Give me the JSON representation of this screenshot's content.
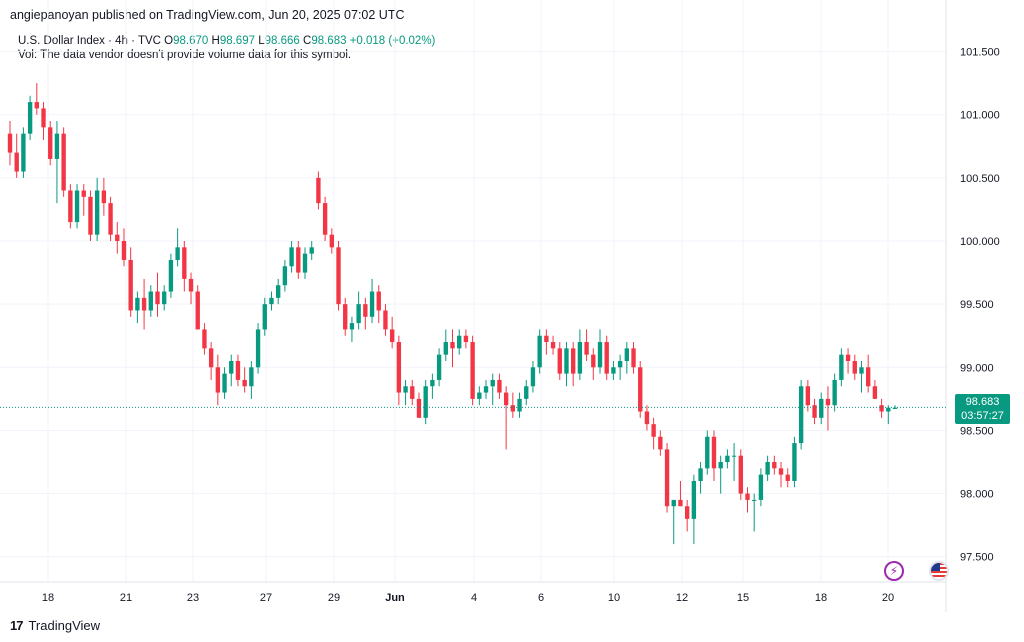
{
  "header": {
    "published": "angiepanoyan published on TradingView.com, Jun 20, 2025 07:02 UTC"
  },
  "legend": {
    "symbol": "U.S. Dollar Index · 4h · TVC",
    "open_label": "O",
    "open": "98.670",
    "high_label": "H",
    "high": "98.697",
    "low_label": "L",
    "low": "98.666",
    "close_label": "C",
    "close": "98.683",
    "change": "+0.018 (+0.02%)",
    "vol_note": "Vol: The data vendor doesn't provide volume data for this symbol."
  },
  "last_price": {
    "value": "98.683",
    "countdown": "03:57:27"
  },
  "colors": {
    "up": "#089981",
    "down": "#f23645",
    "grid": "#f0f3fa"
  },
  "footer": {
    "brand": "TradingView"
  },
  "chart_data": {
    "type": "candlestick",
    "title": "U.S. Dollar Index · 4h · TVC",
    "ylim": [
      97.3,
      101.75
    ],
    "y_ticks": [
      "101.500",
      "101.000",
      "100.500",
      "100.000",
      "99.500",
      "99.000",
      "98.500",
      "98.000",
      "97.500"
    ],
    "x_ticks": [
      "18",
      "21",
      "23",
      "27",
      "29",
      "Jun",
      "4",
      "6",
      "10",
      "12",
      "15",
      "18",
      "20"
    ],
    "candles": [
      [
        100.85,
        100.95,
        100.6,
        100.7
      ],
      [
        100.7,
        100.85,
        100.5,
        100.55
      ],
      [
        100.55,
        100.9,
        100.5,
        100.85
      ],
      [
        100.85,
        101.15,
        100.8,
        101.1
      ],
      [
        101.1,
        101.25,
        101.0,
        101.05
      ],
      [
        101.05,
        101.1,
        100.8,
        100.9
      ],
      [
        100.9,
        100.95,
        100.6,
        100.65
      ],
      [
        100.65,
        100.95,
        100.3,
        100.85
      ],
      [
        100.85,
        100.9,
        100.35,
        100.4
      ],
      [
        100.4,
        100.45,
        100.1,
        100.15
      ],
      [
        100.15,
        100.45,
        100.1,
        100.4
      ],
      [
        100.4,
        100.45,
        100.2,
        100.35
      ],
      [
        100.35,
        100.4,
        100.0,
        100.05
      ],
      [
        100.05,
        100.5,
        100.0,
        100.4
      ],
      [
        100.4,
        100.5,
        100.2,
        100.3
      ],
      [
        100.3,
        100.35,
        100.0,
        100.05
      ],
      [
        100.05,
        100.15,
        99.9,
        100.0
      ],
      [
        100.0,
        100.1,
        99.8,
        99.85
      ],
      [
        99.85,
        99.95,
        99.4,
        99.45
      ],
      [
        99.45,
        99.6,
        99.35,
        99.55
      ],
      [
        99.55,
        99.7,
        99.3,
        99.45
      ],
      [
        99.45,
        99.65,
        99.4,
        99.6
      ],
      [
        99.6,
        99.75,
        99.4,
        99.5
      ],
      [
        99.5,
        99.65,
        99.45,
        99.6
      ],
      [
        99.6,
        99.9,
        99.55,
        99.85
      ],
      [
        99.85,
        100.1,
        99.8,
        99.95
      ],
      [
        99.95,
        100.0,
        99.6,
        99.7
      ],
      [
        99.7,
        99.75,
        99.5,
        99.6
      ],
      [
        99.6,
        99.65,
        99.3,
        99.3
      ],
      [
        99.3,
        99.35,
        99.1,
        99.15
      ],
      [
        99.15,
        99.2,
        98.9,
        99.0
      ],
      [
        99.0,
        99.1,
        98.7,
        98.8
      ],
      [
        98.8,
        99.0,
        98.75,
        98.95
      ],
      [
        98.95,
        99.1,
        98.85,
        99.05
      ],
      [
        99.05,
        99.1,
        98.85,
        98.9
      ],
      [
        98.9,
        99.0,
        98.8,
        98.85
      ],
      [
        98.85,
        99.05,
        98.75,
        99.0
      ],
      [
        99.0,
        99.35,
        98.95,
        99.3
      ],
      [
        99.3,
        99.55,
        99.25,
        99.5
      ],
      [
        99.5,
        99.6,
        99.45,
        99.55
      ],
      [
        99.55,
        99.7,
        99.5,
        99.65
      ],
      [
        99.65,
        99.85,
        99.6,
        99.8
      ],
      [
        99.8,
        100.0,
        99.75,
        99.95
      ],
      [
        99.95,
        100.0,
        99.7,
        99.75
      ],
      [
        99.75,
        99.95,
        99.7,
        99.9
      ],
      [
        99.9,
        100.0,
        99.85,
        99.95
      ],
      [
        100.5,
        100.55,
        100.25,
        100.3
      ],
      [
        100.3,
        100.35,
        100.0,
        100.05
      ],
      [
        100.05,
        100.1,
        99.9,
        99.95
      ],
      [
        99.95,
        100.0,
        99.45,
        99.5
      ],
      [
        99.5,
        99.55,
        99.25,
        99.3
      ],
      [
        99.3,
        99.4,
        99.2,
        99.35
      ],
      [
        99.35,
        99.6,
        99.3,
        99.5
      ],
      [
        99.5,
        99.55,
        99.3,
        99.4
      ],
      [
        99.4,
        99.7,
        99.35,
        99.6
      ],
      [
        99.6,
        99.65,
        99.35,
        99.45
      ],
      [
        99.45,
        99.5,
        99.25,
        99.3
      ],
      [
        99.3,
        99.4,
        99.15,
        99.2
      ],
      [
        99.2,
        99.25,
        98.7,
        98.8
      ],
      [
        98.8,
        98.9,
        98.7,
        98.85
      ],
      [
        98.85,
        98.9,
        98.7,
        98.75
      ],
      [
        98.75,
        98.8,
        98.6,
        98.6
      ],
      [
        98.6,
        98.9,
        98.55,
        98.85
      ],
      [
        98.85,
        98.95,
        98.75,
        98.9
      ],
      [
        98.9,
        99.15,
        98.85,
        99.1
      ],
      [
        99.1,
        99.3,
        99.05,
        99.2
      ],
      [
        99.2,
        99.3,
        99.0,
        99.15
      ],
      [
        99.15,
        99.3,
        99.1,
        99.25
      ],
      [
        99.25,
        99.3,
        99.15,
        99.2
      ],
      [
        99.2,
        99.25,
        98.7,
        98.75
      ],
      [
        98.75,
        98.85,
        98.7,
        98.8
      ],
      [
        98.8,
        98.9,
        98.75,
        98.85
      ],
      [
        98.85,
        98.95,
        98.7,
        98.9
      ],
      [
        98.9,
        98.95,
        98.75,
        98.8
      ],
      [
        98.8,
        98.85,
        98.35,
        98.7
      ],
      [
        98.7,
        98.8,
        98.6,
        98.65
      ],
      [
        98.65,
        98.8,
        98.6,
        98.75
      ],
      [
        98.75,
        98.9,
        98.7,
        98.85
      ],
      [
        98.85,
        99.05,
        98.8,
        99.0
      ],
      [
        99.0,
        99.3,
        98.95,
        99.25
      ],
      [
        99.25,
        99.3,
        99.1,
        99.2
      ],
      [
        99.2,
        99.25,
        99.1,
        99.15
      ],
      [
        99.15,
        99.2,
        98.9,
        98.95
      ],
      [
        98.95,
        99.2,
        98.85,
        99.15
      ],
      [
        99.15,
        99.2,
        98.85,
        98.95
      ],
      [
        98.95,
        99.3,
        98.9,
        99.2
      ],
      [
        99.2,
        99.3,
        99.05,
        99.1
      ],
      [
        99.1,
        99.15,
        98.9,
        99.0
      ],
      [
        99.0,
        99.3,
        98.95,
        99.2
      ],
      [
        99.2,
        99.25,
        98.9,
        98.95
      ],
      [
        98.95,
        99.05,
        98.9,
        99.0
      ],
      [
        99.0,
        99.1,
        98.9,
        99.05
      ],
      [
        99.05,
        99.2,
        98.95,
        99.15
      ],
      [
        99.15,
        99.2,
        98.95,
        99.0
      ],
      [
        99.0,
        99.05,
        98.6,
        98.65
      ],
      [
        98.65,
        98.7,
        98.5,
        98.55
      ],
      [
        98.55,
        98.6,
        98.35,
        98.45
      ],
      [
        98.45,
        98.5,
        98.3,
        98.35
      ],
      [
        98.35,
        98.4,
        97.85,
        97.9
      ],
      [
        97.9,
        97.95,
        97.6,
        97.95
      ],
      [
        97.95,
        98.1,
        97.9,
        97.9
      ],
      [
        97.9,
        97.95,
        97.7,
        97.8
      ],
      [
        97.8,
        98.15,
        97.6,
        98.1
      ],
      [
        98.1,
        98.25,
        98.0,
        98.2
      ],
      [
        98.2,
        98.5,
        98.15,
        98.45
      ],
      [
        98.45,
        98.5,
        98.1,
        98.2
      ],
      [
        98.2,
        98.3,
        98.0,
        98.25
      ],
      [
        98.25,
        98.35,
        98.2,
        98.3
      ],
      [
        98.3,
        98.4,
        98.1,
        98.3
      ],
      [
        98.3,
        98.35,
        97.95,
        98.0
      ],
      [
        98.0,
        98.05,
        97.85,
        97.95
      ],
      [
        97.95,
        98.0,
        97.7,
        97.95
      ],
      [
        97.95,
        98.2,
        97.9,
        98.15
      ],
      [
        98.15,
        98.3,
        98.1,
        98.25
      ],
      [
        98.25,
        98.3,
        98.15,
        98.2
      ],
      [
        98.2,
        98.25,
        98.05,
        98.15
      ],
      [
        98.15,
        98.2,
        98.05,
        98.1
      ],
      [
        98.1,
        98.45,
        98.05,
        98.4
      ],
      [
        98.4,
        98.9,
        98.35,
        98.85
      ],
      [
        98.85,
        98.9,
        98.65,
        98.7
      ],
      [
        98.7,
        98.75,
        98.55,
        98.6
      ],
      [
        98.6,
        98.8,
        98.55,
        98.75
      ],
      [
        98.75,
        98.85,
        98.5,
        98.7
      ],
      [
        98.7,
        98.95,
        98.65,
        98.9
      ],
      [
        98.9,
        99.15,
        98.85,
        99.1
      ],
      [
        99.1,
        99.15,
        98.95,
        99.05
      ],
      [
        99.05,
        99.1,
        98.9,
        98.95
      ],
      [
        98.95,
        99.05,
        98.8,
        99.0
      ],
      [
        99.0,
        99.1,
        98.8,
        98.85
      ],
      [
        98.85,
        98.9,
        98.75,
        98.75
      ],
      [
        98.7,
        98.75,
        98.6,
        98.65
      ],
      [
        98.65,
        98.7,
        98.55,
        98.68
      ],
      [
        98.67,
        98.7,
        98.67,
        98.68
      ]
    ]
  }
}
